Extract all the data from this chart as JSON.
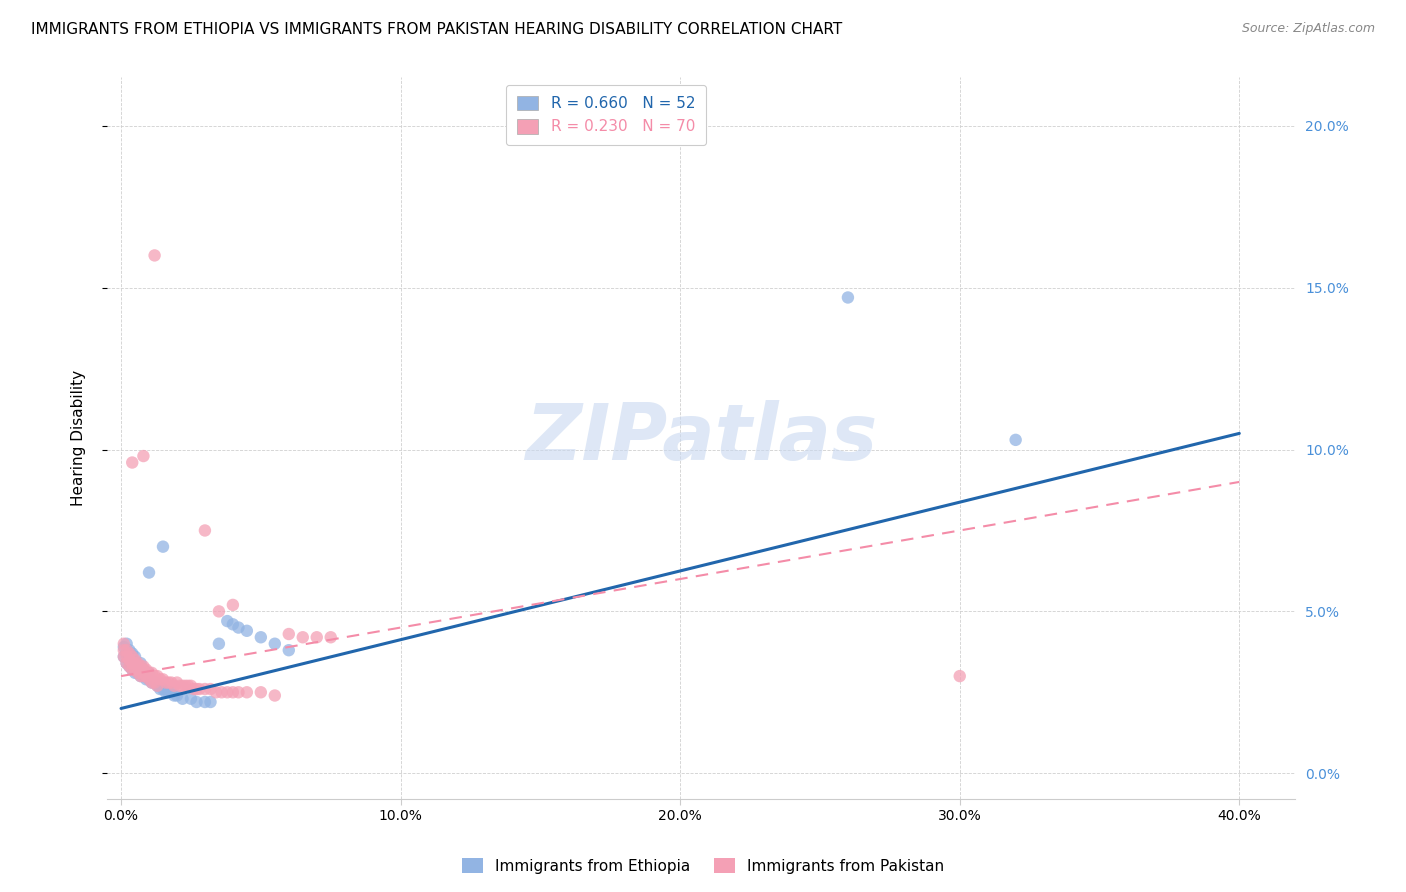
{
  "title": "IMMIGRANTS FROM ETHIOPIA VS IMMIGRANTS FROM PAKISTAN HEARING DISABILITY CORRELATION CHART",
  "source": "Source: ZipAtlas.com",
  "xlabel_ticks": [
    "0.0%",
    "10.0%",
    "20.0%",
    "30.0%",
    "40.0%"
  ],
  "xlabel_vals": [
    0.0,
    0.1,
    0.2,
    0.3,
    0.4
  ],
  "ylabel_ticks": [
    "0.0%",
    "5.0%",
    "10.0%",
    "15.0%",
    "20.0%"
  ],
  "ylabel_vals": [
    0.0,
    0.05,
    0.1,
    0.15,
    0.2
  ],
  "xlim": [
    -0.005,
    0.42
  ],
  "ylim": [
    -0.008,
    0.215
  ],
  "ethiopia_color": "#92b4e3",
  "pakistan_color": "#f4a0b5",
  "ethiopia_line_color": "#2166ac",
  "pakistan_line_color": "#f48ca8",
  "ylabel": "Hearing Disability",
  "watermark": "ZIPatlas",
  "ethiopia_line_x": [
    0.0,
    0.4
  ],
  "ethiopia_line_y": [
    0.02,
    0.105
  ],
  "pakistan_line_x": [
    0.0,
    0.4
  ],
  "pakistan_line_y": [
    0.03,
    0.09
  ],
  "background_color": "#ffffff",
  "grid_color": "#d0d0d0",
  "title_fontsize": 11,
  "axis_label_fontsize": 11,
  "tick_fontsize": 10,
  "legend_fontsize": 11,
  "right_tick_color": "#4a90d9",
  "eth_scatter_x": [
    0.001,
    0.001,
    0.002,
    0.002,
    0.002,
    0.003,
    0.003,
    0.003,
    0.004,
    0.004,
    0.004,
    0.005,
    0.005,
    0.005,
    0.006,
    0.006,
    0.007,
    0.007,
    0.007,
    0.008,
    0.008,
    0.009,
    0.009,
    0.01,
    0.01,
    0.011,
    0.012,
    0.013,
    0.014,
    0.015,
    0.016,
    0.017,
    0.018,
    0.019,
    0.02,
    0.022,
    0.025,
    0.027,
    0.03,
    0.032,
    0.035,
    0.038,
    0.04,
    0.042,
    0.045,
    0.05,
    0.055,
    0.06,
    0.01,
    0.015,
    0.26,
    0.32
  ],
  "eth_scatter_y": [
    0.036,
    0.039,
    0.034,
    0.037,
    0.04,
    0.033,
    0.036,
    0.038,
    0.032,
    0.035,
    0.037,
    0.031,
    0.034,
    0.036,
    0.031,
    0.033,
    0.03,
    0.032,
    0.034,
    0.03,
    0.032,
    0.029,
    0.031,
    0.029,
    0.031,
    0.028,
    0.028,
    0.027,
    0.026,
    0.026,
    0.025,
    0.025,
    0.025,
    0.024,
    0.024,
    0.023,
    0.023,
    0.022,
    0.022,
    0.022,
    0.04,
    0.047,
    0.046,
    0.045,
    0.044,
    0.042,
    0.04,
    0.038,
    0.062,
    0.07,
    0.147,
    0.103
  ],
  "pak_scatter_x": [
    0.001,
    0.001,
    0.001,
    0.002,
    0.002,
    0.002,
    0.003,
    0.003,
    0.003,
    0.004,
    0.004,
    0.004,
    0.005,
    0.005,
    0.005,
    0.006,
    0.006,
    0.006,
    0.007,
    0.007,
    0.007,
    0.008,
    0.008,
    0.008,
    0.009,
    0.009,
    0.01,
    0.01,
    0.011,
    0.011,
    0.012,
    0.012,
    0.013,
    0.013,
    0.014,
    0.015,
    0.016,
    0.017,
    0.018,
    0.019,
    0.02,
    0.021,
    0.022,
    0.023,
    0.024,
    0.025,
    0.026,
    0.027,
    0.028,
    0.03,
    0.032,
    0.034,
    0.036,
    0.038,
    0.04,
    0.042,
    0.045,
    0.05,
    0.055,
    0.06,
    0.065,
    0.07,
    0.075,
    0.004,
    0.008,
    0.012,
    0.03,
    0.035,
    0.04,
    0.3
  ],
  "pak_scatter_y": [
    0.04,
    0.036,
    0.038,
    0.038,
    0.034,
    0.036,
    0.037,
    0.033,
    0.035,
    0.036,
    0.032,
    0.034,
    0.035,
    0.032,
    0.034,
    0.034,
    0.031,
    0.033,
    0.033,
    0.03,
    0.032,
    0.033,
    0.03,
    0.032,
    0.032,
    0.03,
    0.031,
    0.029,
    0.031,
    0.028,
    0.03,
    0.028,
    0.03,
    0.027,
    0.029,
    0.029,
    0.028,
    0.028,
    0.028,
    0.027,
    0.028,
    0.027,
    0.027,
    0.027,
    0.027,
    0.027,
    0.026,
    0.026,
    0.026,
    0.026,
    0.026,
    0.025,
    0.025,
    0.025,
    0.025,
    0.025,
    0.025,
    0.025,
    0.024,
    0.043,
    0.042,
    0.042,
    0.042,
    0.096,
    0.098,
    0.16,
    0.075,
    0.05,
    0.052,
    0.03
  ]
}
